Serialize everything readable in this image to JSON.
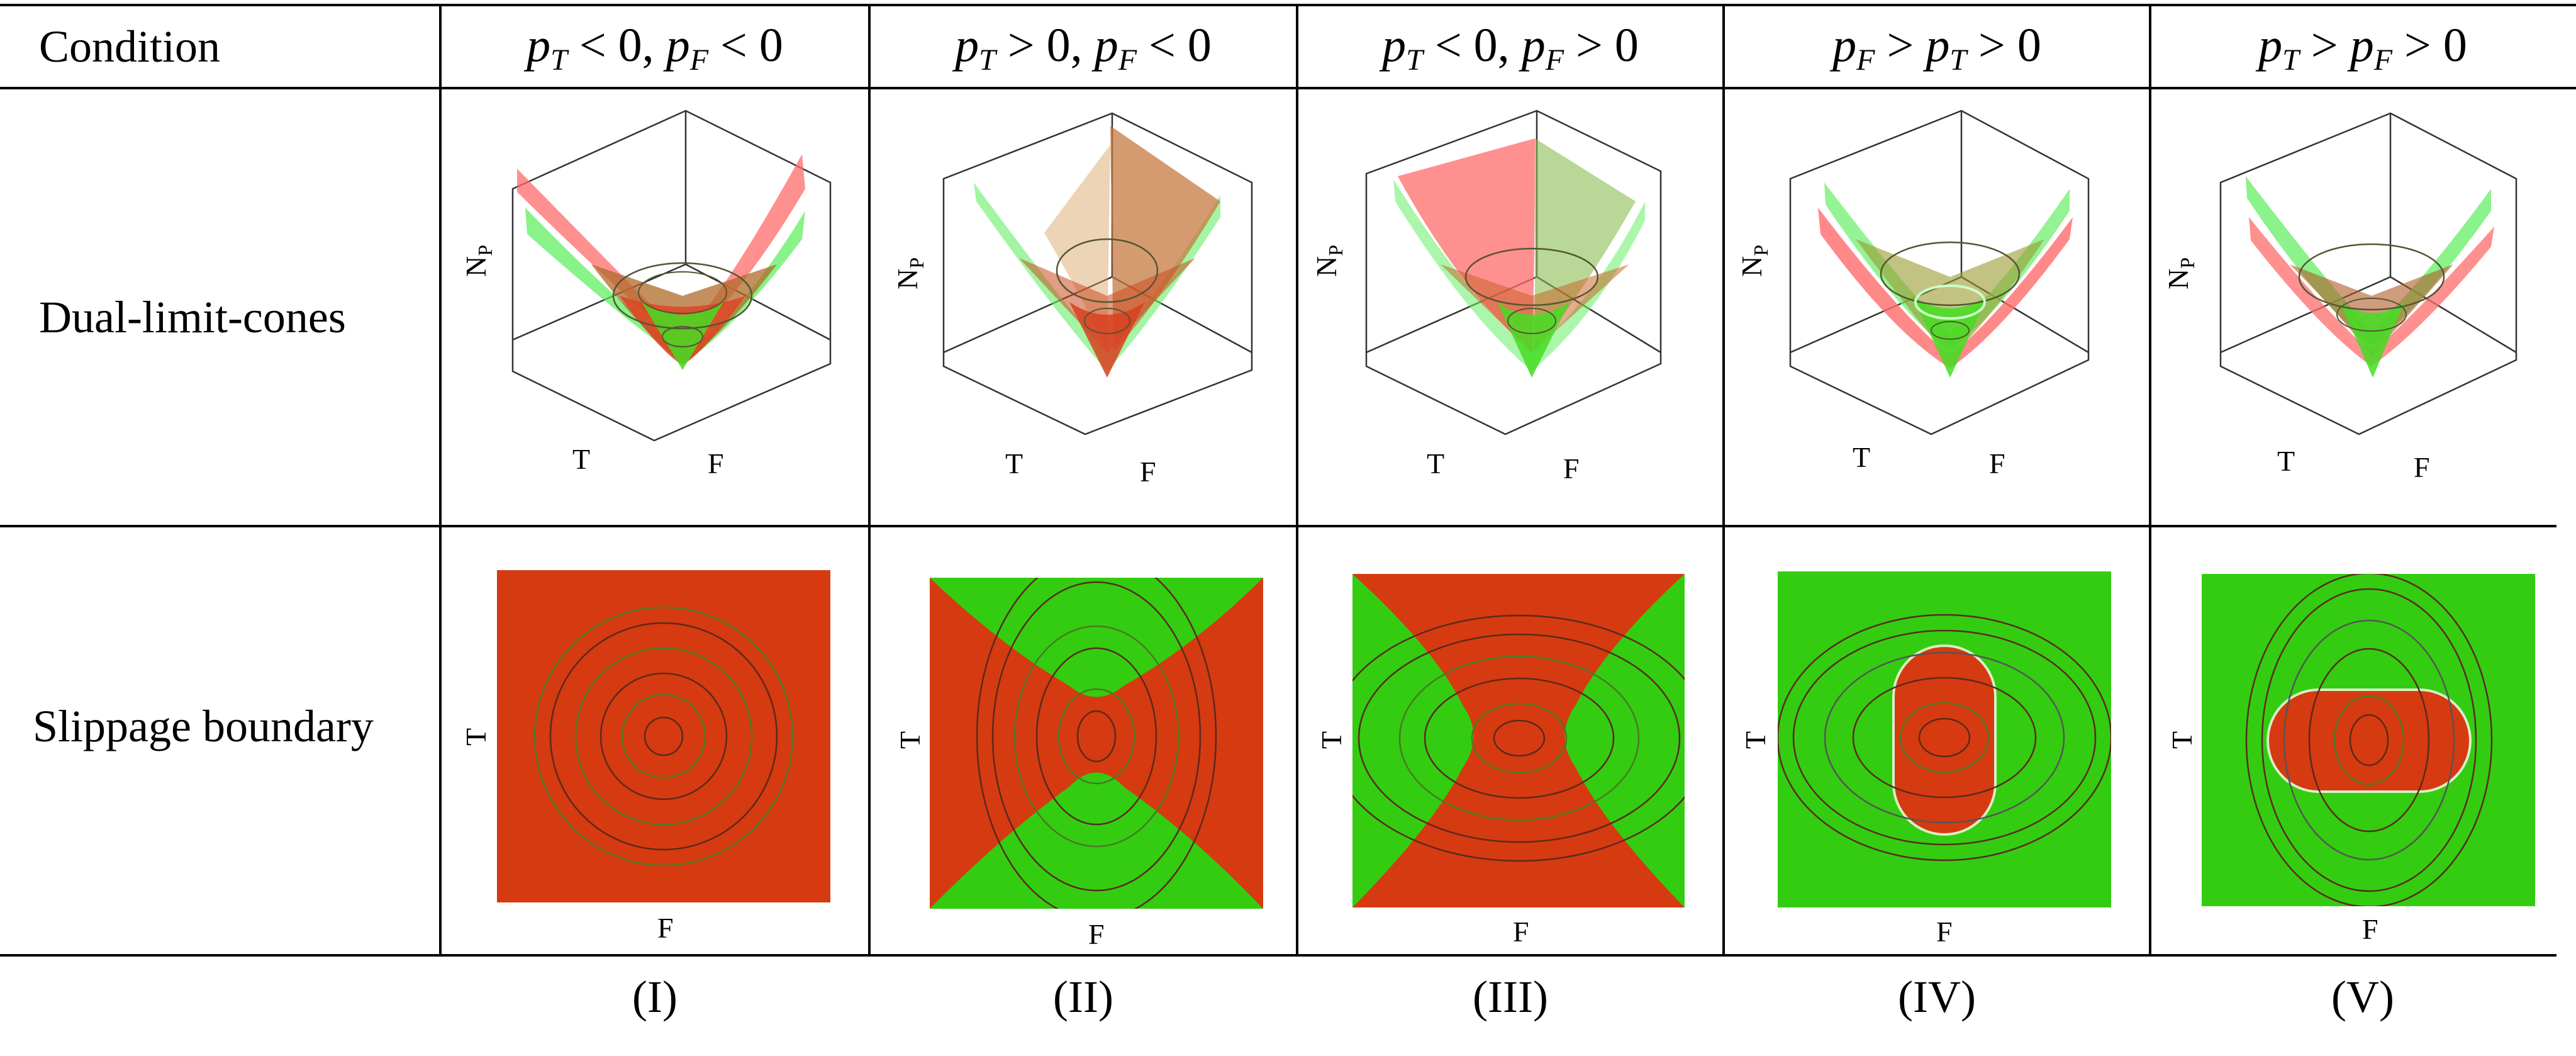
{
  "header": {
    "condition_label": "Condition"
  },
  "rows": {
    "cones_label": "Dual-limit-cones",
    "boundary_label": "Slippage boundary"
  },
  "columns": [
    {
      "id": "I",
      "cond": {
        "a": "p",
        "as": "T",
        "op1": " < 0, ",
        "b": "p",
        "bs": "F",
        "op2": " < 0"
      },
      "footer": "(I)"
    },
    {
      "id": "II",
      "cond": {
        "a": "p",
        "as": "T",
        "op1": " > 0, ",
        "b": "p",
        "bs": "F",
        "op2": " < 0"
      },
      "footer": "(II)"
    },
    {
      "id": "III",
      "cond": {
        "a": "p",
        "as": "T",
        "op1": " < 0, ",
        "b": "p",
        "bs": "F",
        "op2": " > 0"
      },
      "footer": "(III)"
    },
    {
      "id": "IV",
      "cond": {
        "a": "p",
        "as": "F",
        "op1": " > ",
        "b": "p",
        "bs": "T",
        "op2": " > 0"
      },
      "footer": "(IV)"
    },
    {
      "id": "V",
      "cond": {
        "a": "p",
        "as": "T",
        "op1": " > ",
        "b": "p",
        "bs": "F",
        "op2": " > 0"
      },
      "footer": "(V)"
    }
  ],
  "axes": {
    "cone_vertical": "N",
    "cone_vertical_sub": "P",
    "cone_left": "T",
    "cone_right": "F",
    "map_x": "F",
    "map_y": "T"
  },
  "colors": {
    "red": "#d63a10",
    "green": "#33cc11",
    "contour": "#5a2a1a",
    "rule": "#000000"
  }
}
